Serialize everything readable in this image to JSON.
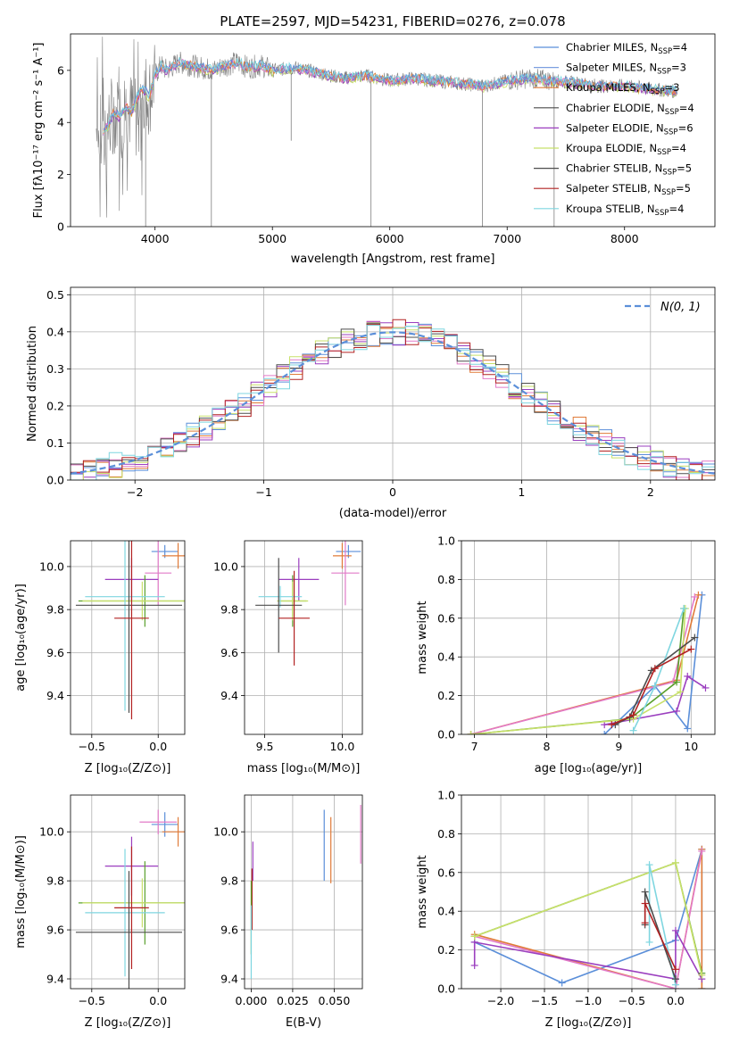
{
  "figure": {
    "title": "PLATE=2597, MJD=54231, FIBERID=0276, z=0.078"
  },
  "colors": {
    "chabrier_miles": "#5b8fd9",
    "salpeter_miles": "#7b9fe0",
    "kroupa_miles": "#e07b39",
    "chabrier_elodie": "#4a4a4a",
    "salpeter_elodie": "#9b3fbf",
    "kroupa_elodie": "#c8e06a",
    "chabrier_stelib": "#4d4d4d",
    "salpeter_stelib": "#b22222",
    "kroupa_stelib": "#7fd6e0",
    "pink": "#e27ac8",
    "green": "#5aa02c",
    "data_gray": "#808080",
    "normal_curve": "#5b8fd9"
  },
  "chart_data": [
    {
      "id": "spectrum",
      "type": "line",
      "title": "PLATE=2597, MJD=54231, FIBERID=0276, z=0.078",
      "xlabel": "wavelength [Angstrom, rest frame]",
      "ylabel": "Flux [f_λ 10^-17 erg cm^-2 s^-1 A^-1]",
      "xlim": [
        3280,
        8770
      ],
      "ylim": [
        0,
        7.4
      ],
      "xticks": [
        4000,
        5000,
        6000,
        7000,
        8000
      ],
      "yticks": [
        0,
        2,
        4,
        6
      ],
      "grid": false,
      "legend_position": "upper-right",
      "legend": [
        {
          "label": "Chabrier MILES, N_SSP=4",
          "color_key": "chabrier_miles"
        },
        {
          "label": "Salpeter MILES, N_SSP=3",
          "color_key": "salpeter_miles"
        },
        {
          "label": "Kroupa MILES, N_SSP=3",
          "color_key": "kroupa_miles"
        },
        {
          "label": "Chabrier ELODIE, N_SSP=4",
          "color_key": "chabrier_elodie"
        },
        {
          "label": "Salpeter ELODIE, N_SSP=6",
          "color_key": "salpeter_elodie"
        },
        {
          "label": "Kroupa ELODIE, N_SSP=4",
          "color_key": "kroupa_elodie"
        },
        {
          "label": "Chabrier STELIB, N_SSP=5",
          "color_key": "chabrier_stelib"
        },
        {
          "label": "Salpeter STELIB, N_SSP=5",
          "color_key": "salpeter_stelib"
        },
        {
          "label": "Kroupa STELIB, N_SSP=4",
          "color_key": "kroupa_stelib"
        }
      ],
      "continuum": {
        "x": [
          3500,
          3550,
          3600,
          3650,
          3700,
          3750,
          3800,
          3850,
          3900,
          3950,
          4000,
          4050,
          4100,
          4200,
          4300,
          4400,
          4500,
          4600,
          4700,
          4800,
          4900,
          5000,
          5200,
          5400,
          5600,
          5800,
          6000,
          6200,
          6400,
          6600,
          6800,
          7000,
          7200,
          7400,
          7600,
          7800,
          8000,
          8200,
          8400
        ],
        "y": [
          3.8,
          3.6,
          3.9,
          4.4,
          4.2,
          4.6,
          4.4,
          5.0,
          5.3,
          5.0,
          5.8,
          6.2,
          6.0,
          6.3,
          6.2,
          6.1,
          6.0,
          6.2,
          6.3,
          6.1,
          6.2,
          6.0,
          6.1,
          5.9,
          5.7,
          5.8,
          5.6,
          5.7,
          5.6,
          5.5,
          5.4,
          5.6,
          5.7,
          5.6,
          5.5,
          5.4,
          5.4,
          5.3,
          5.2
        ]
      },
      "absorption_lines": [
        {
          "x": 4480,
          "y_min": 0
        },
        {
          "x": 5160,
          "y_min": 3.3
        },
        {
          "x": 5840,
          "y_min": 0
        },
        {
          "x": 6790,
          "y_min": 0
        },
        {
          "x": 7400,
          "y_min": 0
        },
        {
          "x": 3920,
          "y_min": 0
        }
      ]
    },
    {
      "id": "residuals",
      "type": "line",
      "xlabel": "(data-model)/error",
      "ylabel": "Normed distribution",
      "xlim": [
        -2.5,
        2.5
      ],
      "ylim": [
        0,
        0.52
      ],
      "xticks": [
        -2,
        -1,
        0,
        1,
        2
      ],
      "xtick_labels": [
        "−2",
        "−1",
        "0",
        "1",
        "2"
      ],
      "yticks": [
        0.0,
        0.1,
        0.2,
        0.3,
        0.4,
        0.5
      ],
      "ytick_labels": [
        "0.0",
        "0.1",
        "0.2",
        "0.3",
        "0.4",
        "0.5"
      ],
      "grid": true,
      "legend_position": "upper-right",
      "legend": [
        {
          "label": "N(0,1)",
          "color_key": "normal_curve"
        }
      ],
      "bin_width": 0.1
    },
    {
      "id": "age-vs-Z",
      "type": "scatter",
      "xlabel": "Z [log10(Z/Z☉)]",
      "ylabel": "age [log10(age/yr)]",
      "xlim": [
        -0.66,
        0.2
      ],
      "ylim": [
        9.22,
        10.12
      ],
      "xticks": [
        -0.5,
        0.0
      ],
      "xtick_labels": [
        "−0.5",
        "0.0"
      ],
      "yticks": [
        9.4,
        9.6,
        9.8,
        10.0
      ],
      "ytick_labels": [
        "9.4",
        "9.6",
        "9.8",
        "10.0"
      ],
      "grid": true,
      "points": [
        {
          "color_key": "chabrier_miles",
          "x": 0.05,
          "xerr": 0.1,
          "y": 10.07,
          "yerr": 0.03
        },
        {
          "color_key": "kroupa_miles",
          "x": 0.15,
          "xerr": 0.12,
          "y": 10.05,
          "yerr": 0.06
        },
        {
          "color_key": "pink",
          "x": 0.0,
          "xerr": 0.1,
          "y": 9.97,
          "yerr": 0.15
        },
        {
          "color_key": "salpeter_elodie",
          "x": -0.2,
          "xerr": 0.2,
          "y": 9.94,
          "yerr": 0.1
        },
        {
          "color_key": "green",
          "x": -0.1,
          "xerr": 0.5,
          "y": 9.84,
          "yerr": 0.12
        },
        {
          "color_key": "kroupa_elodie",
          "x": -0.12,
          "xerr": 0.45,
          "y": 9.84,
          "yerr": 0.09
        },
        {
          "color_key": "kroupa_stelib",
          "x": -0.25,
          "xerr": 0.3,
          "y": 9.86,
          "yerr": 0.53
        },
        {
          "color_key": "chabrier_stelib",
          "x": -0.22,
          "xerr": 0.4,
          "y": 9.82,
          "yerr": 0.5
        },
        {
          "color_key": "salpeter_stelib",
          "x": -0.2,
          "xerr": 0.13,
          "y": 9.76,
          "yerr": 0.47
        }
      ]
    },
    {
      "id": "age-vs-mass",
      "type": "scatter",
      "xlabel": "mass [log10(M/M☉)]",
      "ylabel": "",
      "xlim": [
        9.37,
        10.13
      ],
      "ylim": [
        9.22,
        10.12
      ],
      "xticks": [
        9.5,
        10.0
      ],
      "xtick_labels": [
        "9.5",
        "10.0"
      ],
      "yticks": [
        9.4,
        9.6,
        9.8,
        10.0
      ],
      "ytick_labels": [
        "9.4",
        "9.6",
        "9.8",
        "10.0"
      ],
      "grid": true,
      "points": [
        {
          "color_key": "chabrier_miles",
          "x": 10.04,
          "xerr": 0.08,
          "y": 10.07,
          "yerr": 0.03
        },
        {
          "color_key": "kroupa_miles",
          "x": 10.0,
          "xerr": 0.06,
          "y": 10.05,
          "yerr": 0.06
        },
        {
          "color_key": "pink",
          "x": 10.02,
          "xerr": 0.09,
          "y": 9.97,
          "yerr": 0.15
        },
        {
          "color_key": "salpeter_elodie",
          "x": 9.72,
          "xerr": 0.13,
          "y": 9.94,
          "yerr": 0.1
        },
        {
          "color_key": "green",
          "x": 9.68,
          "xerr": 0.09,
          "y": 9.84,
          "yerr": 0.12
        },
        {
          "color_key": "kroupa_elodie",
          "x": 9.68,
          "xerr": 0.1,
          "y": 9.84,
          "yerr": 0.09
        },
        {
          "color_key": "kroupa_stelib",
          "x": 9.6,
          "xerr": 0.14,
          "y": 9.86,
          "yerr": 0.05
        },
        {
          "color_key": "chabrier_stelib",
          "x": 9.59,
          "xerr": 0.15,
          "y": 9.82,
          "yerr": 0.22
        },
        {
          "color_key": "salpeter_stelib",
          "x": 9.69,
          "xerr": 0.1,
          "y": 9.76,
          "yerr": 0.22
        }
      ]
    },
    {
      "id": "mass-weight-vs-age",
      "type": "line",
      "xlabel": "age [log10(age/yr)]",
      "ylabel": "mass weight",
      "xlim": [
        6.82,
        10.33
      ],
      "ylim": [
        0,
        1.0
      ],
      "xticks": [
        7,
        8,
        9,
        10
      ],
      "xtick_labels": [
        "7",
        "8",
        "9",
        "10"
      ],
      "yticks": [
        0.0,
        0.2,
        0.4,
        0.6,
        0.8,
        1.0
      ],
      "ytick_labels": [
        "0.0",
        "0.2",
        "0.4",
        "0.6",
        "0.8",
        "1.0"
      ],
      "grid": true,
      "series": [
        {
          "color_key": "chabrier_miles",
          "x": [
            8.8,
            9.5,
            9.95,
            10.15
          ],
          "y": [
            0.0,
            0.25,
            0.03,
            0.72
          ]
        },
        {
          "color_key": "kroupa_miles",
          "x": [
            6.95,
            9.8,
            10.1
          ],
          "y": [
            0.0,
            0.28,
            0.72
          ]
        },
        {
          "color_key": "pink",
          "x": [
            6.95,
            9.75,
            10.05
          ],
          "y": [
            0.0,
            0.27,
            0.71
          ]
        },
        {
          "color_key": "salpeter_elodie",
          "x": [
            8.8,
            9.8,
            9.95,
            10.2
          ],
          "y": [
            0.05,
            0.12,
            0.3,
            0.24
          ]
        },
        {
          "color_key": "green",
          "x": [
            6.95,
            9.15,
            9.8,
            9.9
          ],
          "y": [
            0.0,
            0.08,
            0.27,
            0.65
          ]
        },
        {
          "color_key": "kroupa_elodie",
          "x": [
            6.95,
            9.2,
            9.85,
            9.92
          ],
          "y": [
            0.0,
            0.08,
            0.22,
            0.65
          ]
        },
        {
          "color_key": "kroupa_stelib",
          "x": [
            9.2,
            9.5,
            9.9
          ],
          "y": [
            0.02,
            0.25,
            0.65
          ]
        },
        {
          "color_key": "chabrier_stelib",
          "x": [
            8.95,
            9.15,
            9.45,
            10.05
          ],
          "y": [
            0.05,
            0.09,
            0.33,
            0.5
          ]
        },
        {
          "color_key": "salpeter_stelib",
          "x": [
            8.9,
            9.2,
            9.5,
            10.0
          ],
          "y": [
            0.05,
            0.1,
            0.34,
            0.44
          ]
        }
      ]
    },
    {
      "id": "mass-vs-Z",
      "type": "scatter",
      "xlabel": "Z [log10(Z/Z☉)]",
      "ylabel": "mass [log10(M/M☉)]",
      "xlim": [
        -0.66,
        0.2
      ],
      "ylim": [
        9.36,
        10.15
      ],
      "xticks": [
        -0.5,
        0.0
      ],
      "xtick_labels": [
        "−0.5",
        "0.0"
      ],
      "yticks": [
        9.4,
        9.6,
        9.8,
        10.0
      ],
      "ytick_labels": [
        "9.4",
        "9.6",
        "9.8",
        "10.0"
      ],
      "grid": true,
      "points": [
        {
          "color_key": "chabrier_miles",
          "x": 0.05,
          "xerr": 0.1,
          "y": 10.03,
          "yerr": 0.05
        },
        {
          "color_key": "kroupa_miles",
          "x": 0.15,
          "xerr": 0.12,
          "y": 10.0,
          "yerr": 0.06
        },
        {
          "color_key": "pink",
          "x": 0.0,
          "xerr": 0.14,
          "y": 10.04,
          "yerr": 0.05
        },
        {
          "color_key": "salpeter_elodie",
          "x": -0.2,
          "xerr": 0.2,
          "y": 9.86,
          "yerr": 0.12
        },
        {
          "color_key": "green",
          "x": -0.1,
          "xerr": 0.5,
          "y": 9.71,
          "yerr": 0.17
        },
        {
          "color_key": "kroupa_elodie",
          "x": -0.12,
          "xerr": 0.45,
          "y": 9.71,
          "yerr": 0.1
        },
        {
          "color_key": "kroupa_stelib",
          "x": -0.25,
          "xerr": 0.3,
          "y": 9.67,
          "yerr": 0.26
        },
        {
          "color_key": "chabrier_stelib",
          "x": -0.22,
          "xerr": 0.4,
          "y": 9.59,
          "yerr": 0.25
        },
        {
          "color_key": "salpeter_stelib",
          "x": -0.2,
          "xerr": 0.13,
          "y": 9.69,
          "yerr": 0.25
        }
      ]
    },
    {
      "id": "mass-vs-EBV",
      "type": "scatter",
      "xlabel": "E(B-V)",
      "ylabel": "",
      "xlim": [
        -0.004,
        0.067
      ],
      "ylim": [
        9.36,
        10.15
      ],
      "xticks": [
        0.0,
        0.025,
        0.05
      ],
      "xtick_labels": [
        "0.000",
        "0.025",
        "0.050"
      ],
      "yticks": [
        9.4,
        9.6,
        9.8,
        10.0
      ],
      "ytick_labels": [
        "9.4",
        "9.6",
        "9.8",
        "10.0"
      ],
      "grid": true,
      "vlines": [
        {
          "color_key": "chabrier_miles",
          "x": 0.044,
          "y1": 9.8,
          "y2": 10.09
        },
        {
          "color_key": "kroupa_miles",
          "x": 0.048,
          "y1": 9.79,
          "y2": 10.06
        },
        {
          "color_key": "pink",
          "x": 0.066,
          "y1": 9.87,
          "y2": 10.11
        },
        {
          "color_key": "salpeter_elodie",
          "x": 0.001,
          "y1": 9.8,
          "y2": 9.96
        },
        {
          "color_key": "salpeter_stelib",
          "x": 0.0005,
          "y1": 9.6,
          "y2": 9.85
        },
        {
          "color_key": "green",
          "x": 0.0,
          "y1": 9.5,
          "y2": 9.8
        },
        {
          "color_key": "kroupa_stelib",
          "x": 0.0,
          "y1": 9.4,
          "y2": 9.7
        }
      ]
    },
    {
      "id": "mass-weight-vs-Z",
      "type": "line",
      "xlabel": "Z [log10(Z/Z☉)]",
      "ylabel": "mass weight",
      "xlim": [
        -2.45,
        0.45
      ],
      "ylim": [
        0,
        1.0
      ],
      "xticks": [
        -2.0,
        -1.5,
        -1.0,
        -0.5,
        0.0
      ],
      "xtick_labels": [
        "−2.0",
        "−1.5",
        "−1.0",
        "−0.5",
        "0.0"
      ],
      "yticks": [
        0.0,
        0.2,
        0.4,
        0.6,
        0.8,
        1.0
      ],
      "ytick_labels": [
        "0.0",
        "0.2",
        "0.4",
        "0.6",
        "0.8",
        "1.0"
      ],
      "grid": true,
      "series": [
        {
          "color_key": "chabrier_miles",
          "x": [
            -2.3,
            -1.3,
            0.0,
            0.3,
            0.3
          ],
          "y": [
            0.24,
            0.03,
            0.25,
            0.72,
            0.0
          ]
        },
        {
          "color_key": "kroupa_miles",
          "x": [
            -2.3,
            0.0,
            0.3,
            0.3
          ],
          "y": [
            0.28,
            0.0,
            0.72,
            0.0
          ]
        },
        {
          "color_key": "pink",
          "x": [
            -2.3,
            0.0,
            0.3
          ],
          "y": [
            0.27,
            0.0,
            0.71
          ]
        },
        {
          "color_key": "salpeter_elodie",
          "x": [
            -2.3,
            -2.3,
            0.0,
            0.0,
            0.3
          ],
          "y": [
            0.12,
            0.24,
            0.05,
            0.3,
            0.05
          ]
        },
        {
          "color_key": "green",
          "x": [
            -2.3,
            0.0,
            0.3
          ],
          "y": [
            0.27,
            0.65,
            0.08
          ]
        },
        {
          "color_key": "kroupa_elodie",
          "x": [
            -2.3,
            0.0,
            0.3
          ],
          "y": [
            0.27,
            0.65,
            0.07
          ]
        },
        {
          "color_key": "kroupa_stelib",
          "x": [
            -0.3,
            -0.3,
            0.0
          ],
          "y": [
            0.24,
            0.64,
            0.02
          ]
        },
        {
          "color_key": "chabrier_stelib",
          "x": [
            -0.35,
            -0.35,
            0.0
          ],
          "y": [
            0.33,
            0.5,
            0.05
          ]
        },
        {
          "color_key": "salpeter_stelib",
          "x": [
            -0.35,
            -0.35,
            0.0
          ],
          "y": [
            0.34,
            0.44,
            0.1
          ]
        }
      ]
    }
  ]
}
